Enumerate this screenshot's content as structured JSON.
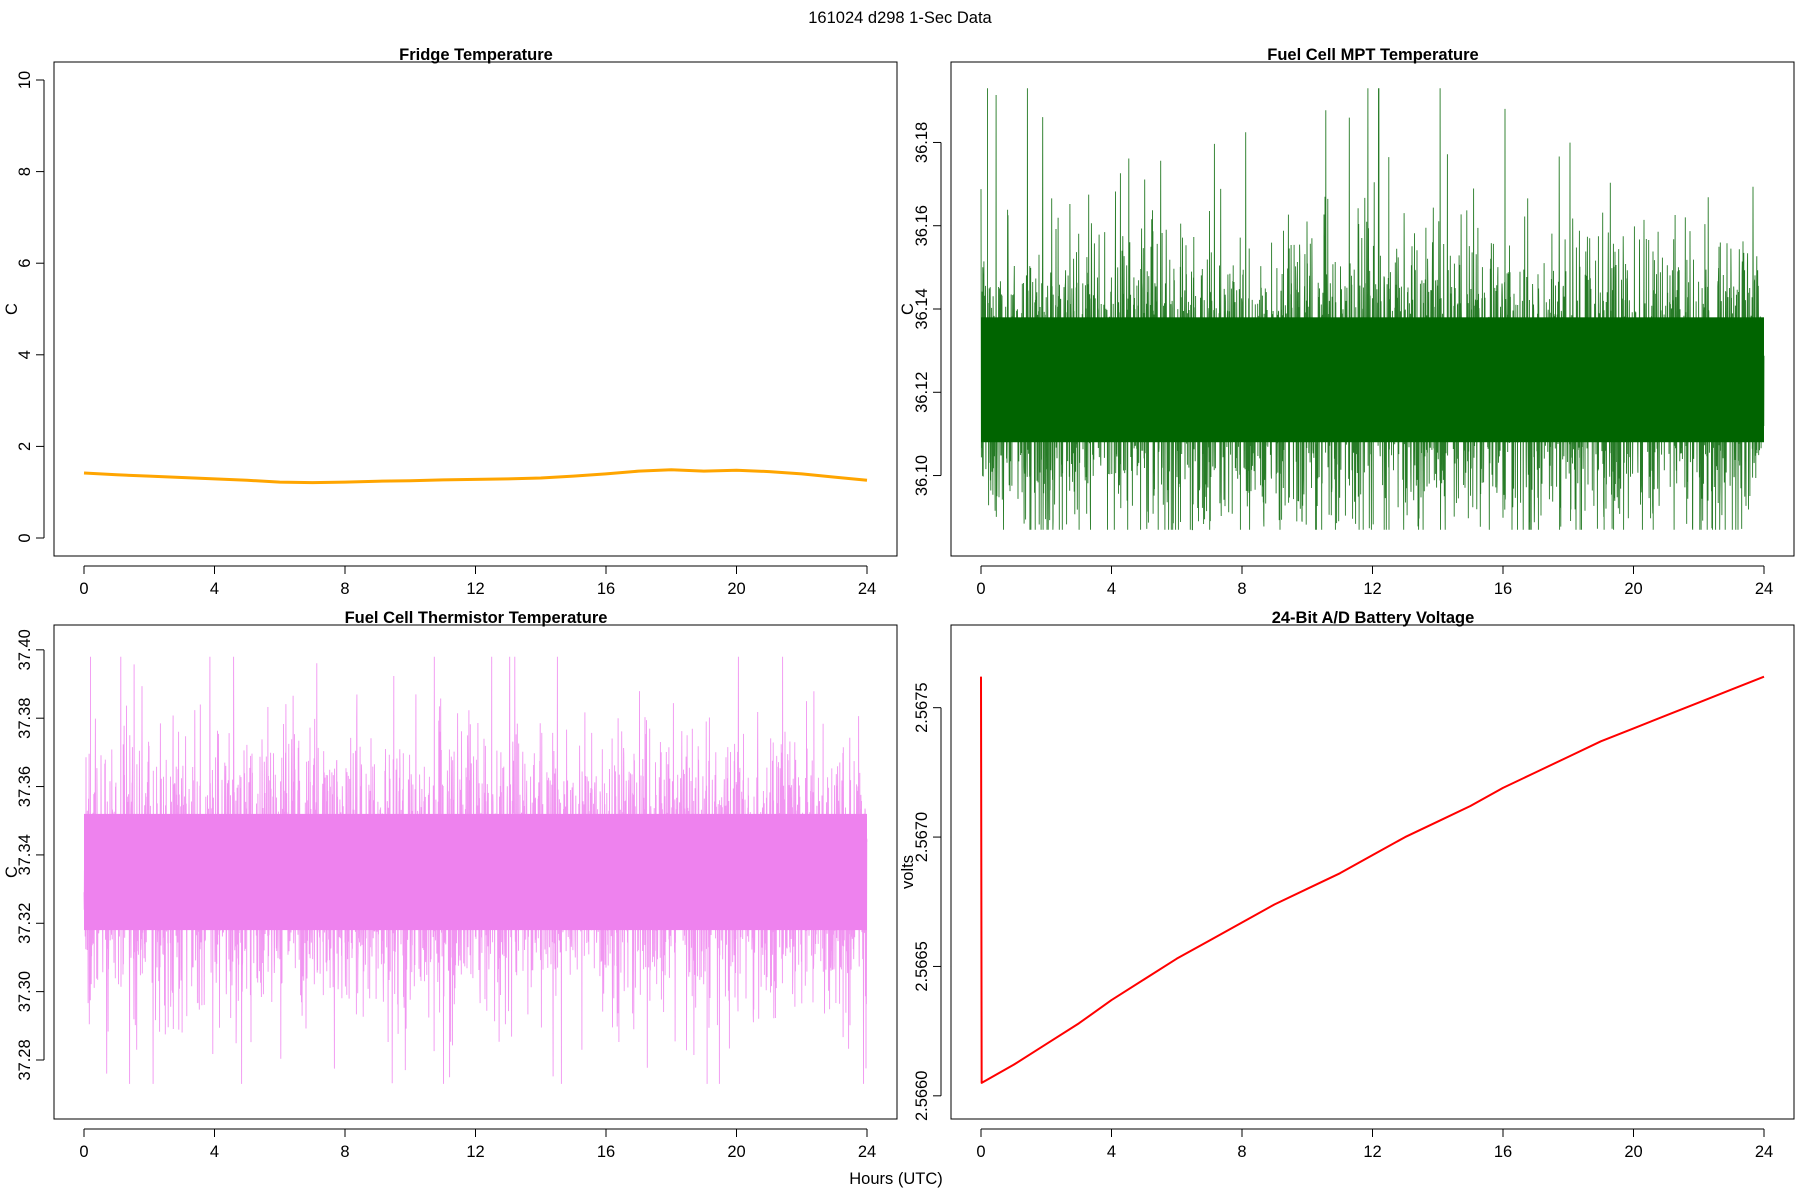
{
  "suptitle": "161024   d298   1-Sec Data",
  "xlabel": "Hours (UTC)",
  "colors": {
    "fridge": "#FFA500",
    "mpt": "#006400",
    "thermistor": "#EE82EE",
    "battery": "#FF0000"
  },
  "chart_data": [
    {
      "type": "line",
      "title": "Fridge Temperature",
      "ylabel": "C",
      "xlim": [
        0,
        24
      ],
      "ylim": [
        0,
        10
      ],
      "xticks": [
        "0",
        "4",
        "8",
        "12",
        "16",
        "20",
        "24"
      ],
      "yticks": [
        "0",
        "2",
        "4",
        "6",
        "8",
        "10"
      ],
      "color": "#FFA500",
      "series": [
        {
          "x": [
            0,
            1,
            2,
            3,
            4,
            5,
            6,
            7,
            8,
            9,
            10,
            11,
            12,
            13,
            14,
            15,
            16,
            17,
            18,
            19,
            20,
            21,
            22,
            23,
            24
          ],
          "values": [
            1.42,
            1.38,
            1.35,
            1.32,
            1.29,
            1.26,
            1.22,
            1.21,
            1.22,
            1.24,
            1.25,
            1.27,
            1.28,
            1.29,
            1.31,
            1.35,
            1.4,
            1.46,
            1.49,
            1.46,
            1.48,
            1.45,
            1.4,
            1.33,
            1.26
          ]
        }
      ]
    },
    {
      "type": "line",
      "title": "Fuel Cell MPT Temperature",
      "ylabel": "C",
      "xlim": [
        0,
        24
      ],
      "ylim": [
        36.085,
        36.195
      ],
      "xticks": [
        "0",
        "4",
        "8",
        "12",
        "16",
        "20",
        "24"
      ],
      "yticks": [
        "36.10",
        "36.12",
        "36.14",
        "36.16",
        "36.18"
      ],
      "color": "#006400",
      "series": [
        {
          "name": "",
          "x_range": [
            0,
            24
          ],
          "mean": 36.123,
          "band_low": 36.108,
          "band_high": 36.138,
          "min": 36.087,
          "max": 36.193
        }
      ]
    },
    {
      "type": "line",
      "title": "Fuel Cell Thermistor Temperature",
      "ylabel": "C",
      "xlim": [
        0,
        24
      ],
      "ylim": [
        37.268,
        37.402
      ],
      "xticks": [
        "0",
        "4",
        "8",
        "12",
        "16",
        "20",
        "24"
      ],
      "yticks": [
        "37.28",
        "37.30",
        "37.32",
        "37.34",
        "37.36",
        "37.38",
        "37.40"
      ],
      "color": "#EE82EE",
      "series": [
        {
          "name": "",
          "x_range": [
            0,
            24
          ],
          "mean": 37.335,
          "band_low": 37.318,
          "band_high": 37.352,
          "min": 37.273,
          "max": 37.398
        }
      ]
    },
    {
      "type": "line",
      "title": "24-Bit A/D Battery Voltage",
      "ylabel": "volts",
      "xlim": [
        0,
        24
      ],
      "ylim": [
        2.56598,
        2.56775
      ],
      "xticks": [
        "0",
        "4",
        "8",
        "12",
        "16",
        "20",
        "24"
      ],
      "yticks": [
        "2.5660",
        "2.5665",
        "2.5670",
        "2.5675"
      ],
      "color": "#FF0000",
      "series": [
        {
          "x": [
            0,
            0.02,
            1,
            2,
            3,
            4,
            5,
            6,
            7,
            8,
            9,
            10,
            11,
            12,
            13,
            14,
            15,
            16,
            17,
            18,
            19,
            20,
            21,
            22,
            23,
            24
          ],
          "values": [
            2.56762,
            2.56605,
            2.56612,
            2.5662,
            2.56628,
            2.56637,
            2.56645,
            2.56653,
            2.5666,
            2.56667,
            2.56674,
            2.5668,
            2.56686,
            2.56693,
            2.567,
            2.56706,
            2.56712,
            2.56719,
            2.56725,
            2.56731,
            2.56737,
            2.56742,
            2.56747,
            2.56752,
            2.56757,
            2.56762
          ]
        }
      ]
    }
  ]
}
